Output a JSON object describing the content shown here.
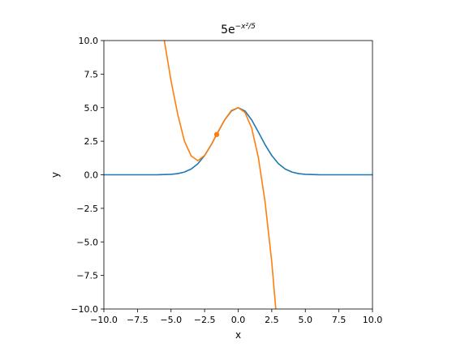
{
  "chart_data": {
    "type": "line",
    "title": "5e^{−x²/5}",
    "title_parts": {
      "base": "5e",
      "exponent": "−x²/5"
    },
    "xlabel": "x",
    "ylabel": "y",
    "xlim": [
      -10,
      10
    ],
    "ylim": [
      -10,
      10
    ],
    "xticks": [
      -10,
      -7.5,
      -5,
      -2.5,
      0,
      2.5,
      5,
      7.5,
      10
    ],
    "yticks": [
      -10,
      -7.5,
      -5,
      -2.5,
      0,
      2.5,
      5,
      7.5,
      10
    ],
    "xtick_labels": [
      "−10.0",
      "−7.5",
      "−5.0",
      "−2.5",
      "0.0",
      "2.5",
      "5.0",
      "7.5",
      "10.0"
    ],
    "ytick_labels": [
      "−10.0",
      "−7.5",
      "−5.0",
      "−2.5",
      "0.0",
      "2.5",
      "5.0",
      "7.5",
      "10.0"
    ],
    "grid": false,
    "series": [
      {
        "color": "#1f77b4",
        "x": [
          -10,
          -8,
          -6,
          -5,
          -4.5,
          -4,
          -3.5,
          -3,
          -2.5,
          -2,
          -1.5,
          -1,
          -0.5,
          0,
          0.5,
          1,
          1.5,
          2,
          2.5,
          3,
          3.5,
          4,
          4.5,
          5,
          6,
          8,
          10
        ],
        "y": [
          0.0,
          0.0,
          0.004,
          0.034,
          0.087,
          0.204,
          0.43,
          0.826,
          1.433,
          2.247,
          3.188,
          4.094,
          4.756,
          5.0,
          4.756,
          4.094,
          3.188,
          2.247,
          1.433,
          0.826,
          0.43,
          0.204,
          0.087,
          0.034,
          0.004,
          0.0,
          0.0
        ]
      },
      {
        "color": "#ff7f0e",
        "x": [
          -5.5,
          -5,
          -4.5,
          -4,
          -3.5,
          -3,
          -2.5,
          -2,
          -1.5,
          -1,
          -0.5,
          0,
          0.5,
          1,
          1.5,
          2,
          2.5,
          2.8
        ],
        "y": [
          10.0,
          7.0,
          4.5,
          2.5,
          1.4,
          1.05,
          1.45,
          2.25,
          3.2,
          4.1,
          4.8,
          5.0,
          4.65,
          3.5,
          1.3,
          -2.0,
          -6.5,
          -10.0
        ]
      }
    ],
    "points": [
      {
        "x": -1.6,
        "y": 3.0,
        "color": "#ff7f0e"
      }
    ]
  }
}
